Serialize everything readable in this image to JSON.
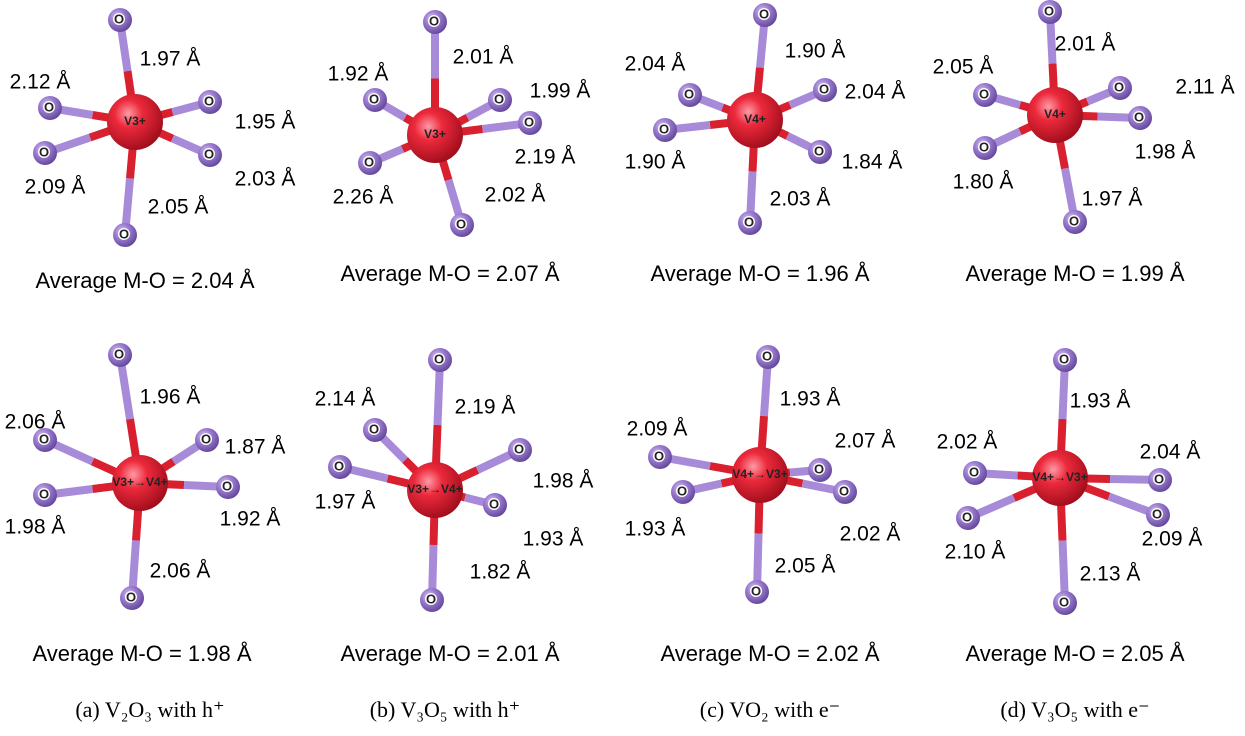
{
  "panels": [
    {
      "center": "V3+",
      "bonds": [
        "1.97 Å",
        "2.12 Å",
        "1.95 Å",
        "2.09 Å",
        "2.03 Å",
        "2.05 Å"
      ],
      "average": "Average M-O = 2.04 Å"
    },
    {
      "center": "V3+",
      "bonds": [
        "2.01 Å",
        "1.92 Å",
        "1.99 Å",
        "2.26 Å",
        "2.19 Å",
        "2.02 Å"
      ],
      "average": "Average M-O = 2.07 Å"
    },
    {
      "center": "V4+",
      "bonds": [
        "1.90 Å",
        "2.04 Å",
        "2.04 Å",
        "1.90 Å",
        "1.84 Å",
        "2.03 Å"
      ],
      "average": "Average M-O = 1.96 Å"
    },
    {
      "center": "V4+",
      "bonds": [
        "2.01 Å",
        "2.05 Å",
        "2.11 Å",
        "1.80 Å",
        "1.98 Å",
        "1.97 Å"
      ],
      "average": "Average M-O = 1.99 Å"
    },
    {
      "center": "V3+→V4+",
      "bonds": [
        "1.96 Å",
        "2.06 Å",
        "1.87 Å",
        "1.98 Å",
        "1.92 Å",
        "2.06 Å"
      ],
      "average": "Average M-O = 1.98 Å"
    },
    {
      "center": "V3+→V4+",
      "bonds": [
        "2.14 Å",
        "2.19 Å",
        "1.98 Å",
        "1.97 Å",
        "1.93 Å",
        "1.82 Å"
      ],
      "average": "Average M-O = 2.01 Å"
    },
    {
      "center": "V4+→V3+",
      "bonds": [
        "1.93 Å",
        "2.09 Å",
        "2.07 Å",
        "1.93 Å",
        "2.02 Å",
        "2.05 Å"
      ],
      "average": "Average M-O = 2.02 Å"
    },
    {
      "center": "V4+→V3+",
      "bonds": [
        "1.93 Å",
        "2.02 Å",
        "2.04 Å",
        "2.10 Å",
        "2.09 Å",
        "2.13 Å"
      ],
      "average": "Average M-O = 2.05 Å"
    }
  ],
  "atom_label": "O",
  "captions": [
    "(a) V₂O₃ with h⁺",
    "(b) V₃O₅ with h⁺",
    "(c) VO₂ with e⁻",
    "(d) V₃O₅ with e⁻"
  ]
}
